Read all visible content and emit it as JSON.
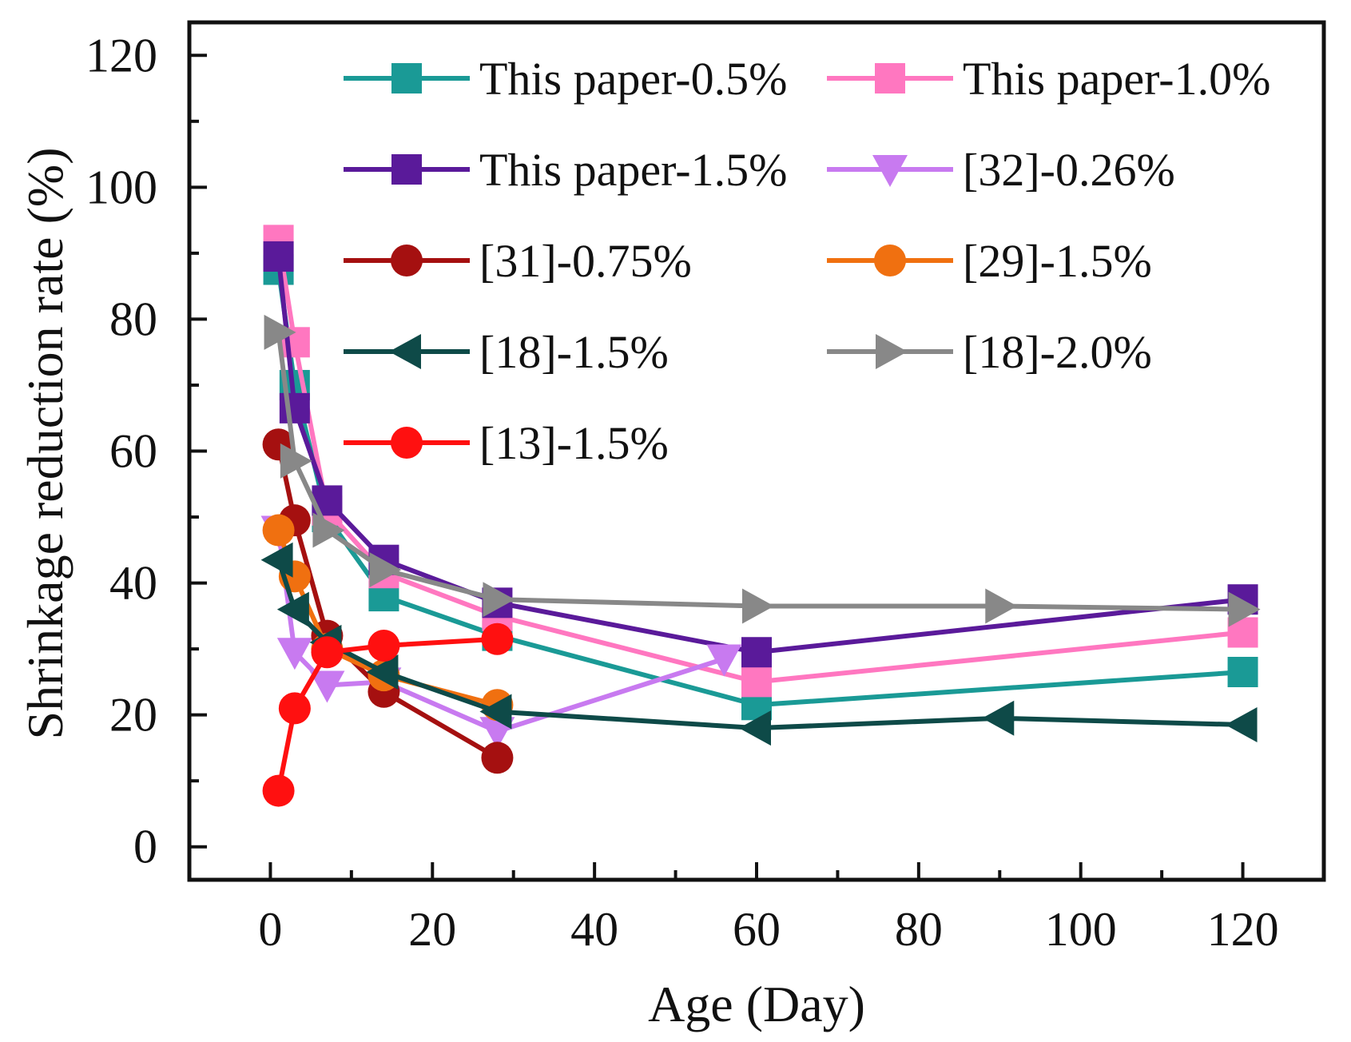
{
  "chart_data": {
    "type": "line",
    "title": "",
    "xlabel": "Age (Day)",
    "ylabel": "Shrinkage reduction rate (%)",
    "xlim": [
      -10,
      130
    ],
    "ylim": [
      -5,
      125
    ],
    "xticks": [
      0,
      20,
      40,
      60,
      80,
      100,
      120
    ],
    "yticks": [
      0,
      20,
      40,
      60,
      80,
      100,
      120
    ],
    "xtick_labels": [
      "0",
      "20",
      "40",
      "60",
      "80",
      "100",
      "120"
    ],
    "ytick_labels": [
      "0",
      "20",
      "40",
      "60",
      "80",
      "100",
      "120"
    ],
    "grid": false,
    "legend_position": "top-right",
    "series": [
      {
        "name": "This paper-0.5%",
        "color": "#1a9a96",
        "marker": "square",
        "x": [
          1,
          3,
          7,
          14,
          28,
          60,
          120
        ],
        "y": [
          87.5,
          70,
          50,
          38,
          32,
          21.5,
          26.5
        ]
      },
      {
        "name": "This paper-1.0%",
        "color": "#ff77c0",
        "marker": "square",
        "x": [
          1,
          3,
          7,
          14,
          28,
          60,
          120
        ],
        "y": [
          92,
          76.5,
          51,
          41.5,
          35,
          25,
          32.5
        ]
      },
      {
        "name": "This paper-1.5%",
        "color": "#5a1a9a",
        "marker": "square",
        "x": [
          1,
          3,
          7,
          14,
          28,
          60,
          120
        ],
        "y": [
          89.5,
          66.5,
          52.5,
          43.5,
          37,
          29.5,
          37.5
        ]
      },
      {
        "name": "[32]-0.26%",
        "color": "#c87af0",
        "marker": "triangle-down",
        "x": [
          1,
          3,
          7,
          14,
          28,
          56
        ],
        "y": [
          48,
          29.5,
          24.5,
          25,
          17.5,
          28.5
        ]
      },
      {
        "name": "[31]-0.75%",
        "color": "#a51010",
        "marker": "circle",
        "x": [
          1,
          3,
          7,
          14,
          28
        ],
        "y": [
          61,
          49.5,
          32,
          23.5,
          13.5
        ]
      },
      {
        "name": "[29]-1.5%",
        "color": "#f07010",
        "marker": "circle",
        "x": [
          1,
          3,
          7,
          14,
          28
        ],
        "y": [
          48,
          41,
          30,
          26,
          21.5
        ]
      },
      {
        "name": "[18]-1.5%",
        "color": "#0e4a48",
        "marker": "triangle-left",
        "x": [
          1,
          3,
          7,
          14,
          28,
          60,
          90,
          120
        ],
        "y": [
          43.5,
          36,
          31,
          26.5,
          20.5,
          18,
          19.5,
          18.5
        ]
      },
      {
        "name": "[18]-2.0%",
        "color": "#888888",
        "marker": "triangle-right",
        "x": [
          1,
          3,
          7,
          14,
          28,
          60,
          90,
          120
        ],
        "y": [
          78,
          58.5,
          48,
          42,
          37.5,
          36.5,
          36.5,
          36
        ]
      },
      {
        "name": "[13]-1.5%",
        "color": "#ff1010",
        "marker": "circle",
        "x": [
          1,
          3,
          7,
          14,
          28
        ],
        "y": [
          8.5,
          21,
          29.5,
          30.5,
          31.5
        ]
      }
    ]
  }
}
